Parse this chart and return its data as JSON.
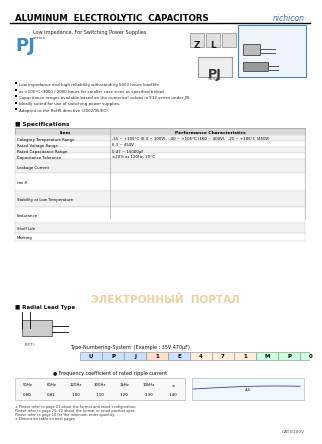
{
  "title_line1": "ALUMINUM  ELECTROLYTIC  CAPACITORS",
  "brand": "nichicon",
  "series_letter": "PJ",
  "series_desc": "Low Impedance, For Switching Power Supplies",
  "series_sub": "series",
  "bullets": [
    "Low impedance and high reliability withstanding 5000 hours load life",
    "at +105°C (3000 / 2000 hours for smaller case sizes as specified below).",
    "Capacitance ranges available based on the numerical values in E12 series under JIS.",
    "Ideally suited for use of switching power supplies.",
    "Adapted to the RoHS directive (2002/95/EC)."
  ],
  "spec_title": "Specifications",
  "spec_rows": [
    [
      "Category Temperature Range",
      "-55 ~ +105°C (6.3 ~ 100V),  -40 ~ +105°C (160 ~ 400V),  -25 ~ +105°C (450V)"
    ],
    [
      "Rated Voltage Range",
      "6.3 ~ 450V"
    ],
    [
      "Rated Capacitance Range",
      "0.47 ~ 15000μF"
    ],
    [
      "Capacitance Tolerance",
      "±20% at 120Hz, 20°C"
    ]
  ],
  "leakage_label": "Leakage Current",
  "endurance_label": "Endurance",
  "shelf_life_label": "Shelf Life",
  "marking_label": "Marking",
  "tan_delta_label": "tan δ",
  "stability_label": "Stability at Low Temperature",
  "radial_lead_label": "Radial Lead Type",
  "type_numbering_label": "Type-Numbering-System  (Example : 35V 470μF)",
  "type_code": [
    "U",
    "P",
    "J",
    "1",
    "E",
    "4",
    "7",
    "1",
    "M",
    "P",
    "0"
  ],
  "freq_label": "● Frequency coefficient of rated ripple current",
  "note1": "∗ Please refer to page 21 about the format and rated configuration.",
  "note2": "Please refer to page 20, 22 about the format or rated product spec.",
  "note3": "Please refer to page 10 for the minimum order quantity.",
  "note4": "∗ Dimension table on next pages.",
  "cat_no": "CAT.8100V",
  "bg_color": "#ffffff",
  "blue_color": "#4488bb",
  "title_color": "#000000",
  "brand_color": "#4466aa",
  "watermark_color": "#ddaa55",
  "table_header_bg": "#d8d8d8",
  "table_row0_bg": "#f2f2f2",
  "table_row1_bg": "#ffffff"
}
